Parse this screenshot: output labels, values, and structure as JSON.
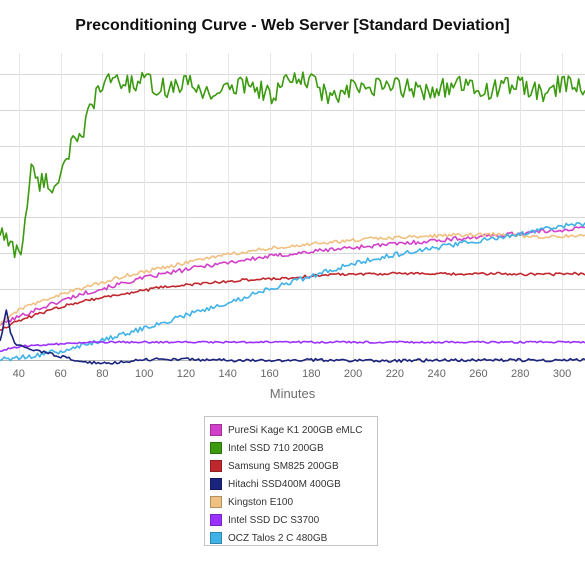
{
  "chart_data": {
    "type": "line",
    "title": "Preconditioning Curve - Web Server [Standard Deviation]",
    "xlabel": "Minutes",
    "ylabel": "",
    "xlim": [
      31,
      311
    ],
    "ylim": [
      0,
      8.6
    ],
    "xticks": [
      40,
      60,
      80,
      100,
      120,
      140,
      160,
      180,
      200,
      220,
      240,
      260,
      280,
      300
    ],
    "y_gridlines": [
      1,
      2,
      3,
      4,
      5,
      6,
      7,
      8
    ],
    "grid": true,
    "legend_position": "bottom",
    "series": [
      {
        "name": "PureSi Kage K1 200GB eMLC",
        "color": "#d23fc8",
        "points": [
          [
            31,
            1.0
          ],
          [
            50,
            1.45
          ],
          [
            70,
            1.85
          ],
          [
            100,
            2.3
          ],
          [
            130,
            2.65
          ],
          [
            160,
            2.9
          ],
          [
            190,
            3.1
          ],
          [
            220,
            3.25
          ],
          [
            250,
            3.4
          ],
          [
            280,
            3.55
          ],
          [
            311,
            3.7
          ]
        ]
      },
      {
        "name": "Intel SSD 710 200GB",
        "color": "#3c9a10",
        "points": [
          [
            31,
            3.6
          ],
          [
            34,
            3.4
          ],
          [
            36,
            3.15
          ],
          [
            39,
            3.1
          ],
          [
            41,
            3.0
          ],
          [
            43,
            4.0
          ],
          [
            46,
            5.3
          ],
          [
            50,
            5.0
          ],
          [
            54,
            5.0
          ],
          [
            57,
            4.75
          ],
          [
            61,
            5.5
          ],
          [
            65,
            6.0
          ],
          [
            70,
            6.1
          ],
          [
            74,
            7.1
          ],
          [
            78,
            7.5
          ],
          [
            82,
            7.75
          ],
          [
            86,
            8.0
          ],
          [
            90,
            7.7
          ],
          [
            100,
            7.8
          ],
          [
            110,
            7.6
          ],
          [
            120,
            7.75
          ],
          [
            130,
            7.5
          ],
          [
            140,
            7.55
          ],
          [
            150,
            7.8
          ],
          [
            160,
            7.4
          ],
          [
            170,
            7.85
          ],
          [
            180,
            7.8
          ],
          [
            190,
            7.3
          ],
          [
            200,
            7.6
          ],
          [
            210,
            7.6
          ],
          [
            220,
            7.7
          ],
          [
            230,
            7.55
          ],
          [
            240,
            7.6
          ],
          [
            250,
            7.7
          ],
          [
            260,
            7.55
          ],
          [
            270,
            7.6
          ],
          [
            280,
            7.75
          ],
          [
            290,
            7.4
          ],
          [
            300,
            7.75
          ],
          [
            311,
            7.65
          ]
        ]
      },
      {
        "name": "Samsung SM825 200GB",
        "color": "#c0272d",
        "points": [
          [
            31,
            0.85
          ],
          [
            40,
            1.1
          ],
          [
            55,
            1.4
          ],
          [
            70,
            1.65
          ],
          [
            90,
            1.85
          ],
          [
            110,
            2.05
          ],
          [
            130,
            2.15
          ],
          [
            150,
            2.25
          ],
          [
            170,
            2.3
          ],
          [
            190,
            2.4
          ],
          [
            210,
            2.42
          ],
          [
            230,
            2.42
          ],
          [
            250,
            2.4
          ],
          [
            270,
            2.42
          ],
          [
            290,
            2.4
          ],
          [
            311,
            2.42
          ]
        ]
      },
      {
        "name": "Hitachi SSD400M 400GB",
        "color": "#1a237e",
        "points": [
          [
            31,
            0.55
          ],
          [
            32,
            0.75
          ],
          [
            34,
            1.4
          ],
          [
            36,
            0.8
          ],
          [
            38,
            0.45
          ],
          [
            42,
            0.35
          ],
          [
            50,
            0.25
          ],
          [
            60,
            0.1
          ],
          [
            70,
            -0.05
          ],
          [
            80,
            -0.1
          ],
          [
            90,
            -0.05
          ],
          [
            100,
            0.02
          ],
          [
            120,
            0.02
          ],
          [
            150,
            -0.02
          ],
          [
            180,
            0.0
          ],
          [
            220,
            -0.02
          ],
          [
            260,
            0.0
          ],
          [
            290,
            0.0
          ],
          [
            311,
            0.0
          ]
        ]
      },
      {
        "name": "Kingston E100",
        "color": "#f0c080",
        "points": [
          [
            31,
            1.0
          ],
          [
            40,
            1.4
          ],
          [
            55,
            1.75
          ],
          [
            70,
            2.0
          ],
          [
            90,
            2.35
          ],
          [
            110,
            2.6
          ],
          [
            130,
            2.85
          ],
          [
            150,
            3.05
          ],
          [
            170,
            3.2
          ],
          [
            190,
            3.3
          ],
          [
            210,
            3.4
          ],
          [
            230,
            3.45
          ],
          [
            250,
            3.5
          ],
          [
            270,
            3.52
          ],
          [
            290,
            3.45
          ],
          [
            311,
            3.5
          ]
        ]
      },
      {
        "name": "Intel SSD DC S3700",
        "color": "#9b30ff",
        "points": [
          [
            31,
            0.25
          ],
          [
            40,
            0.38
          ],
          [
            60,
            0.45
          ],
          [
            80,
            0.5
          ],
          [
            110,
            0.5
          ],
          [
            150,
            0.5
          ],
          [
            200,
            0.5
          ],
          [
            250,
            0.5
          ],
          [
            311,
            0.5
          ]
        ]
      },
      {
        "name": "OCZ Talos 2 C 480GB",
        "color": "#3fb2e8",
        "points": [
          [
            31,
            0.0
          ],
          [
            45,
            0.1
          ],
          [
            60,
            0.25
          ],
          [
            80,
            0.55
          ],
          [
            100,
            0.9
          ],
          [
            120,
            1.25
          ],
          [
            140,
            1.6
          ],
          [
            160,
            2.0
          ],
          [
            180,
            2.35
          ],
          [
            200,
            2.7
          ],
          [
            220,
            2.95
          ],
          [
            240,
            3.15
          ],
          [
            260,
            3.35
          ],
          [
            280,
            3.55
          ],
          [
            300,
            3.75
          ],
          [
            311,
            3.8
          ]
        ]
      }
    ]
  }
}
